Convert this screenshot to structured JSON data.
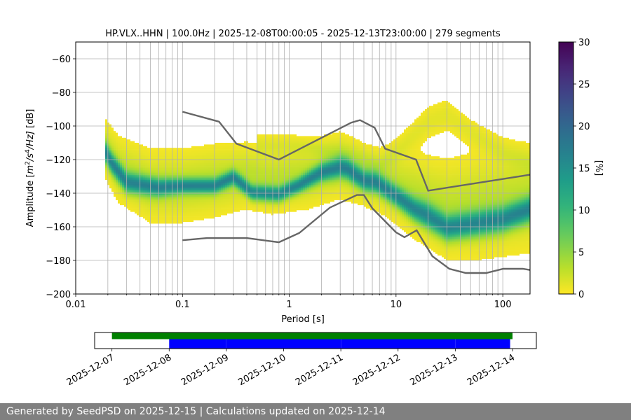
{
  "chart_data": [
    {
      "type": "heatmap",
      "subtype": "probabilistic-power-spectral-density",
      "title": "HP.VLX..HHN | 100.0Hz | 2025-12-08T00:00:05 - 2025-12-13T23:00:00 | 279 segments",
      "xlabel": "Period [s]",
      "ylabel_parts": {
        "pre": "Amplitude [",
        "m": "m",
        "sup1": "2",
        "mid": "/",
        "s": "s",
        "sup2": "4",
        "post": "/Hz] [dB]"
      },
      "x_scale": "log",
      "xlim": [
        0.01,
        180
      ],
      "ylim": [
        -200,
        -50
      ],
      "x_ticks": [
        {
          "value": 0.01,
          "label": "0.01"
        },
        {
          "value": 0.1,
          "label": "0.1"
        },
        {
          "value": 1,
          "label": "1"
        },
        {
          "value": 10,
          "label": "10"
        },
        {
          "value": 100,
          "label": "100"
        }
      ],
      "y_ticks": [
        {
          "value": -60,
          "label": "−60"
        },
        {
          "value": -80,
          "label": "−80"
        },
        {
          "value": -100,
          "label": "−100"
        },
        {
          "value": -120,
          "label": "−120"
        },
        {
          "value": -140,
          "label": "−140"
        },
        {
          "value": -160,
          "label": "−160"
        },
        {
          "value": -180,
          "label": "−180"
        },
        {
          "value": -200,
          "label": "−200"
        }
      ],
      "grid": true,
      "colormap": "viridis_r",
      "colorbar": {
        "label": "[%]",
        "range": [
          0,
          30
        ],
        "ticks": [
          {
            "value": 0,
            "label": "0"
          },
          {
            "value": 5,
            "label": "5"
          },
          {
            "value": 10,
            "label": "10"
          },
          {
            "value": 15,
            "label": "15"
          },
          {
            "value": 20,
            "label": "20"
          },
          {
            "value": 25,
            "label": "25"
          },
          {
            "value": 30,
            "label": "30"
          }
        ]
      },
      "model_color": "#666666",
      "high_noise_model": [
        [
          0.1,
          -91.5
        ],
        [
          0.22,
          -97.4
        ],
        [
          0.32,
          -110.5
        ],
        [
          0.8,
          -120
        ],
        [
          3.8,
          -98
        ],
        [
          4.6,
          -96.5
        ],
        [
          6.3,
          -101
        ],
        [
          7.9,
          -113.5
        ],
        [
          15.4,
          -120
        ],
        [
          20,
          -138.5
        ],
        [
          180,
          -129
        ]
      ],
      "low_noise_model": [
        [
          0.1,
          -168
        ],
        [
          0.17,
          -166.7
        ],
        [
          0.4,
          -166.7
        ],
        [
          0.8,
          -169.2
        ],
        [
          1.24,
          -163.7
        ],
        [
          2.4,
          -148.6
        ],
        [
          4.3,
          -141.1
        ],
        [
          5,
          -141.1
        ],
        [
          6,
          -149
        ],
        [
          10,
          -163.3
        ],
        [
          12,
          -166.2
        ],
        [
          15.6,
          -162.1
        ],
        [
          21.9,
          -177.5
        ],
        [
          31.6,
          -185
        ],
        [
          45,
          -187.5
        ],
        [
          70,
          -187.5
        ],
        [
          101,
          -185
        ],
        [
          154,
          -185
        ],
        [
          180,
          -185.7
        ]
      ],
      "density_bands": [
        {
          "name": "main",
          "points": [
            [
              0.019,
              -116,
              4
            ],
            [
              0.022,
              -123,
              4
            ],
            [
              0.03,
              -134,
              4
            ],
            [
              0.06,
              -137,
              3.5
            ],
            [
              0.1,
              -136,
              3
            ],
            [
              0.2,
              -136,
              3
            ],
            [
              0.3,
              -131,
              3
            ],
            [
              0.45,
              -140,
              3
            ],
            [
              0.8,
              -141,
              3
            ],
            [
              1.2,
              -136,
              3
            ],
            [
              2,
              -128,
              3.5
            ],
            [
              3,
              -125,
              4
            ],
            [
              3.5,
              -126,
              4
            ],
            [
              5,
              -133,
              4
            ],
            [
              6.5,
              -134,
              4
            ],
            [
              10,
              -142,
              4
            ],
            [
              15,
              -150,
              4.5
            ],
            [
              20,
              -154,
              5
            ],
            [
              30,
              -161,
              5
            ],
            [
              50,
              -159,
              5
            ],
            [
              100,
              -156,
              5
            ],
            [
              180,
              -150,
              5
            ]
          ],
          "peak": 14
        },
        {
          "name": "wide",
          "points": [
            [
              0.019,
              -114,
              9
            ],
            [
              0.025,
              -126,
              10
            ],
            [
              0.05,
              -136,
              11
            ],
            [
              0.1,
              -136,
              11
            ],
            [
              0.2,
              -133,
              11
            ],
            [
              0.4,
              -130,
              10
            ],
            [
              0.7,
              -133,
              10
            ],
            [
              1.5,
              -130,
              10
            ],
            [
              3,
              -124,
              10
            ],
            [
              5,
              -130,
              9
            ],
            [
              8,
              -134,
              10
            ],
            [
              15,
              -142,
              13
            ],
            [
              30,
              -150,
              15
            ],
            [
              60,
              -148,
              16
            ],
            [
              180,
              -144,
              16
            ]
          ],
          "peak": 3
        },
        {
          "name": "upper-tail",
          "points": [
            [
              0.5,
              -112,
              4
            ],
            [
              1,
              -112,
              4
            ],
            [
              1.6,
              -113,
              3
            ],
            [
              4,
              -118,
              5
            ],
            [
              7,
              -124,
              4
            ],
            [
              10,
              -116,
              5
            ],
            [
              20,
              -98,
              6
            ],
            [
              30,
              -94,
              6
            ],
            [
              50,
              -104,
              5
            ],
            [
              100,
              -116,
              5
            ],
            [
              180,
              -122,
              5
            ]
          ],
          "peak": 1.2
        }
      ]
    },
    {
      "type": "timeline",
      "date_ticks": [
        "2025-12-07",
        "2025-12-08",
        "2025-12-09",
        "2025-12-10",
        "2025-12-11",
        "2025-12-12",
        "2025-12-13",
        "2025-12-14"
      ],
      "xlim": [
        "2025-12-06T16:45",
        "2025-12-14T10:00"
      ],
      "available_data": {
        "color": "#008000",
        "start": "2025-12-07T00:00",
        "end": "2025-12-14T00:00"
      },
      "psd_segments": {
        "color": "#0000ff",
        "segments": [
          [
            "2025-12-08T00:00:05",
            "2025-12-08T23:59"
          ],
          [
            "2025-12-09T00:01",
            "2025-12-10T23:59"
          ],
          [
            "2025-12-11T00:01",
            "2025-12-12T23:59"
          ],
          [
            "2025-12-13T00:01",
            "2025-12-13T23:00"
          ]
        ]
      }
    }
  ],
  "footer": {
    "text": "Generated by SeedPSD on 2025-12-15 | Calculations updated on 2025-12-14"
  }
}
